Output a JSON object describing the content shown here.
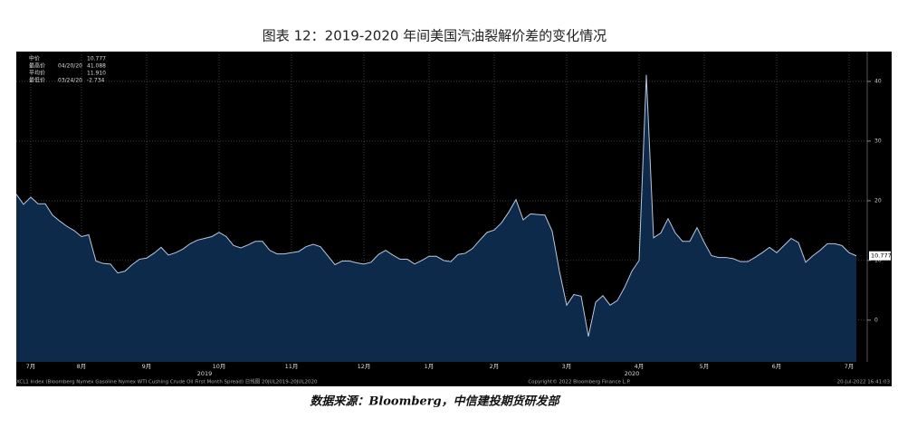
{
  "chart_data": {
    "type": "area",
    "title": "图表 12：2019-2020 年间美国汽油裂解价差的变化情况",
    "source": "数据来源：Bloomberg，中信建投期货研发部",
    "footer_left": "XCL1 Index (Bloomberg Nymex Gasoline Nymex WTI Cushing Crude Oil First Month Spread)  日线图 20JUL2019-20JUL2020",
    "footer_center": "Copyright© 2022 Bloomberg Finance L.P.",
    "footer_right": "20-Jul-2022 16:41:03",
    "stats": [
      {
        "label": "中价",
        "value": "10.777"
      },
      {
        "label": "最高价",
        "date": "04/20/20",
        "value": "41.088"
      },
      {
        "label": "平均价",
        "value": "11.910"
      },
      {
        "label": "最低价",
        "date": "03/24/20",
        "value": "-2.734"
      }
    ],
    "values": [
      21.1,
      19.4,
      20.6,
      19.5,
      19.5,
      17.6,
      16.6,
      15.7,
      15.0,
      14.0,
      14.3,
      9.9,
      9.5,
      9.4,
      7.9,
      8.2,
      9.3,
      10.2,
      10.4,
      11.2,
      12.2,
      10.9,
      11.3,
      11.9,
      12.8,
      13.4,
      13.7,
      14.0,
      14.7,
      14.0,
      12.5,
      12.1,
      12.6,
      13.2,
      13.2,
      11.7,
      11.1,
      11.1,
      11.3,
      11.5,
      12.3,
      12.7,
      12.3,
      10.8,
      9.3,
      9.9,
      9.9,
      9.6,
      9.4,
      9.7,
      11.0,
      11.7,
      10.9,
      10.2,
      10.2,
      9.4,
      10.0,
      10.7,
      10.7,
      10.0,
      9.8,
      11.0,
      11.2,
      12.0,
      13.4,
      14.7,
      15.1,
      16.3,
      18.1,
      20.2,
      16.8,
      17.8,
      17.7,
      17.6,
      14.9,
      8.2,
      2.5,
      4.3,
      4.0,
      -2.734,
      3.0,
      4.1,
      2.5,
      3.3,
      5.5,
      8.2,
      10.0,
      41.088,
      13.8,
      14.6,
      17.0,
      14.6,
      13.2,
      13.2,
      15.5,
      13.0,
      10.8,
      10.5,
      10.5,
      10.3,
      9.8,
      9.8,
      10.5,
      11.3,
      12.2,
      11.3,
      12.5,
      13.7,
      13.0,
      9.7,
      10.8,
      11.7,
      12.8,
      12.8,
      12.5,
      11.3,
      10.777
    ],
    "xlim": [
      0,
      116
    ],
    "xticks": [
      {
        "value": 2,
        "label": "7月"
      },
      {
        "value": 9,
        "label": "8月"
      },
      {
        "value": 18,
        "label": "9月"
      },
      {
        "value": 28,
        "label": "10月"
      },
      {
        "value": 38,
        "label": "11月"
      },
      {
        "value": 48,
        "label": "12月"
      },
      {
        "value": 57,
        "label": "1月"
      },
      {
        "value": 66,
        "label": "2月"
      },
      {
        "value": 76,
        "label": "3月"
      },
      {
        "value": 86,
        "label": "4月"
      },
      {
        "value": 95,
        "label": "5月"
      },
      {
        "value": 105,
        "label": "6月"
      },
      {
        "value": 115,
        "label": "7月"
      }
    ],
    "year_ticks": [
      {
        "value": 26,
        "label": "2019"
      },
      {
        "value": 85,
        "label": "2020"
      }
    ],
    "ylim": [
      -7,
      45
    ],
    "yticks": [
      0,
      10,
      20,
      30,
      40
    ],
    "grid": true,
    "color": "#0e2a4a",
    "line_color": "#b8c8e0"
  }
}
